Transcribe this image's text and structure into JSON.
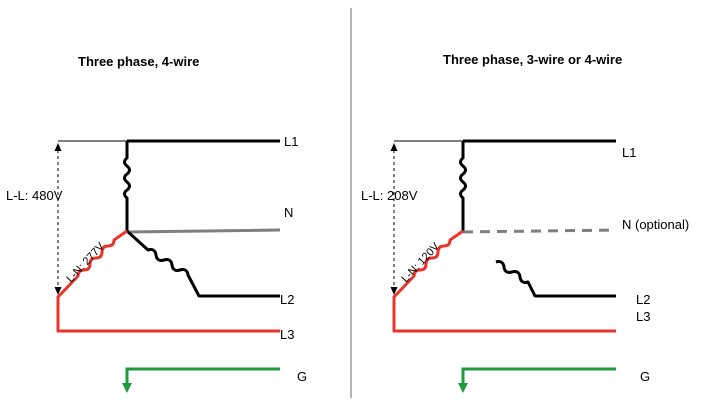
{
  "left_panel": {
    "title": "Three phase, 4-wire",
    "voltage_ll": "L-L: 480V",
    "voltage_ln": "L-N: 277V",
    "labels": {
      "l1": "L1",
      "n": "N",
      "l2": "L2",
      "l3": "L3",
      "g": "G"
    }
  },
  "right_panel": {
    "title": "Three phase, 3-wire or 4-wire",
    "voltage_ll": "L-L: 208V",
    "voltage_ln": "L-N: 120V",
    "labels": {
      "l1": "L1",
      "n": "N (optional)",
      "l2": "L2",
      "l3": "L3",
      "g": "G"
    }
  },
  "colors": {
    "phase_line": "#000000",
    "neutral_line": "#7f7f7f",
    "l3_line": "#e8352b",
    "ground_line": "#1f9a3c",
    "divider": "#8c8c8c"
  }
}
